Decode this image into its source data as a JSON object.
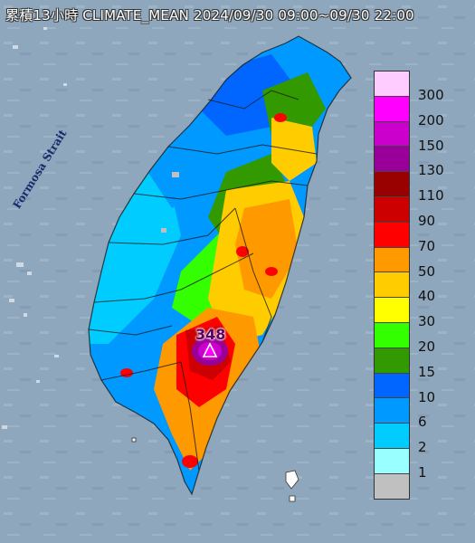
{
  "header": {
    "title": "累積13小時 CLIMATE_MEAN 2024/09/30 09:00~09/30 22:00"
  },
  "map": {
    "sea_label": "Formosa Strait",
    "peak": {
      "value_label": "348",
      "marker": "triangle-icon"
    }
  },
  "legend": {
    "items": [
      {
        "label": "300",
        "color": "#ffccff"
      },
      {
        "label": "200",
        "color": "#ff00ff"
      },
      {
        "label": "150",
        "color": "#cc00cc"
      },
      {
        "label": "130",
        "color": "#990099"
      },
      {
        "label": "110",
        "color": "#990000"
      },
      {
        "label": "90",
        "color": "#cc0000"
      },
      {
        "label": "70",
        "color": "#ff0000"
      },
      {
        "label": "50",
        "color": "#ff9900"
      },
      {
        "label": "40",
        "color": "#ffcc00"
      },
      {
        "label": "30",
        "color": "#ffff00"
      },
      {
        "label": "20",
        "color": "#33ff00"
      },
      {
        "label": "15",
        "color": "#339900"
      },
      {
        "label": "10",
        "color": "#0066ff"
      },
      {
        "label": "6",
        "color": "#0099ff"
      },
      {
        "label": "2",
        "color": "#00ccff"
      },
      {
        "label": "1",
        "color": "#99ffff"
      },
      {
        "label": "",
        "color": "#c0c0c0"
      }
    ]
  },
  "colors": {
    "sea": "#8fa7bd",
    "land_base": "#1f8fe6"
  }
}
